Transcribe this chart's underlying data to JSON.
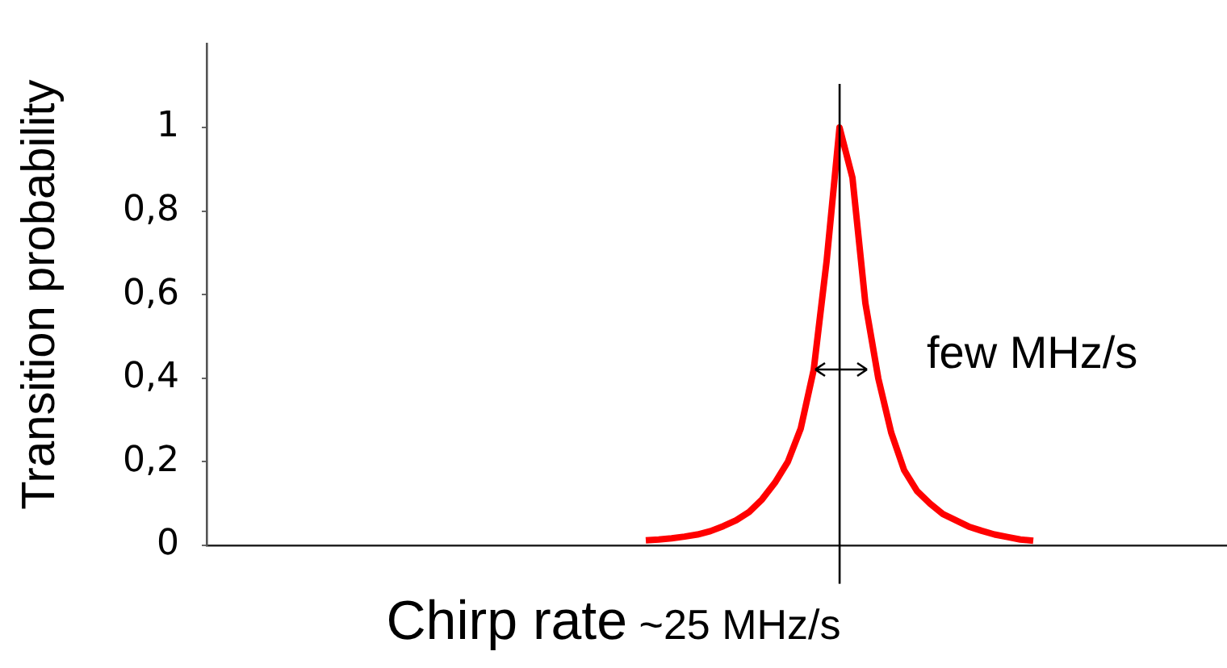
{
  "chart_data": {
    "type": "line",
    "ylabel": "Transition probability",
    "xlabel": "Chirp rate",
    "annotations": [
      "~25 MHz/s",
      "few MHz/s"
    ],
    "categories": [
      null,
      null,
      null,
      null,
      null,
      null,
      null,
      null,
      null,
      null,
      null,
      null,
      null,
      null,
      null,
      null,
      null,
      null,
      null,
      null,
      null,
      null,
      null,
      null,
      null,
      null,
      null,
      null,
      null,
      null,
      null,
      null,
      null,
      null,
      null,
      null,
      null,
      null,
      null,
      null,
      null,
      null,
      null,
      null,
      null,
      null,
      null,
      null,
      null,
      null,
      null,
      null,
      null,
      null,
      null,
      null,
      null,
      null,
      null,
      null,
      null,
      null,
      null,
      null,
      null,
      null,
      null,
      null,
      null,
      null,
      null,
      null,
      null,
      null,
      null,
      null,
      null,
      null,
      null,
      null
    ],
    "series": [
      {
        "color": "#ff0000",
        "values": [
          null,
          null,
          null,
          null,
          null,
          null,
          null,
          null,
          null,
          null,
          null,
          null,
          null,
          null,
          null,
          null,
          null,
          null,
          null,
          null,
          null,
          null,
          null,
          null,
          null,
          null,
          null,
          null,
          null,
          null,
          null,
          null,
          null,
          null,
          0.012,
          0.014,
          0.017,
          0.021,
          0.026,
          0.034,
          0.046,
          0.06,
          0.08,
          0.11,
          0.15,
          0.2,
          0.28,
          0.42,
          0.68,
          1,
          0.88,
          0.58,
          0.4,
          0.27,
          0.18,
          0.13,
          0.1,
          0.075,
          0.06,
          0.045,
          0.035,
          0.026,
          0.02,
          0.014,
          0.011,
          null,
          null,
          null,
          null,
          null,
          null,
          null,
          null,
          null,
          null,
          null,
          null,
          null,
          null,
          null
        ]
      }
    ],
    "ylim": [
      0,
      1.2
    ],
    "yticks": [
      {
        "value": 0,
        "label": "0"
      },
      {
        "value": 0.2,
        "label": "0,2"
      },
      {
        "value": 0.4,
        "label": "0,4"
      },
      {
        "value": 0.6,
        "label": "0,6"
      },
      {
        "value": 0.8,
        "label": "0,8"
      },
      {
        "value": 1,
        "label": "1"
      }
    ],
    "tick_labels": "y",
    "grid": false,
    "legend": false,
    "marker": "none",
    "line_style": "solid"
  }
}
